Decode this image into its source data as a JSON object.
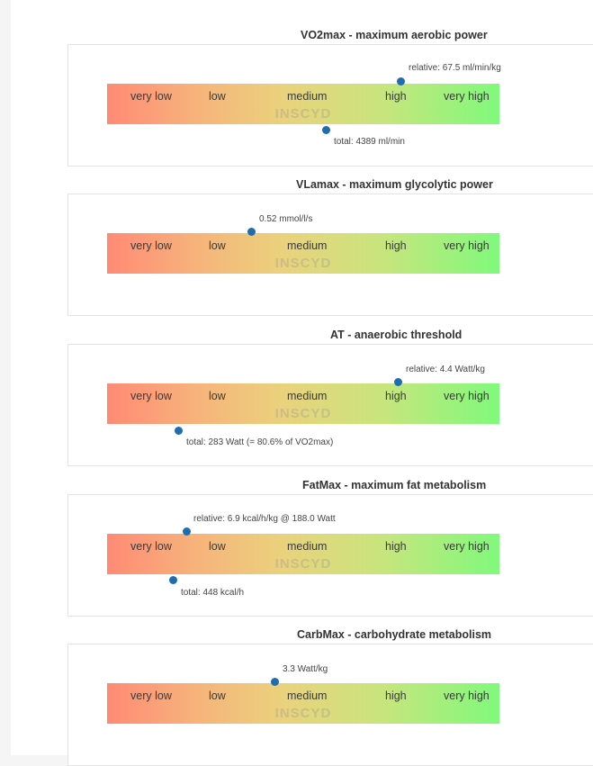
{
  "watermark": "INSCYD",
  "scale_labels": [
    "very low",
    "low",
    "medium",
    "high",
    "very high"
  ],
  "colors": {
    "marker": "#1f6db0",
    "scale_start": "#ff8a75",
    "scale_end": "#80f97c"
  },
  "sections": [
    {
      "title": "VO2max - maximum aerobic power",
      "relative_note": "relative: 67.5 ml/min/kg",
      "relative_level": 0.75,
      "total_note": "total: 4389 ml/min",
      "total_level": 0.56
    },
    {
      "title": "VLamax - maximum glycolytic power",
      "relative_note": "0.52 mmol/l/s",
      "relative_level": 0.37
    },
    {
      "title": "AT - anaerobic threshold",
      "relative_note": "relative: 4.4 Watt/kg",
      "relative_level": 0.74,
      "total_note": "total: 283 Watt (= 80.6% of VO2max)",
      "total_level": 0.18
    },
    {
      "title": "FatMax - maximum fat metabolism",
      "relative_note": "relative: 6.9 kcal/h/kg @ 188.0 Watt",
      "relative_level": 0.2,
      "total_note": "total: 448 kcal/h",
      "total_level": 0.17
    },
    {
      "title": "CarbMax - carbohydrate metabolism",
      "relative_note": "3.3 Watt/kg",
      "relative_level": 0.43
    }
  ]
}
